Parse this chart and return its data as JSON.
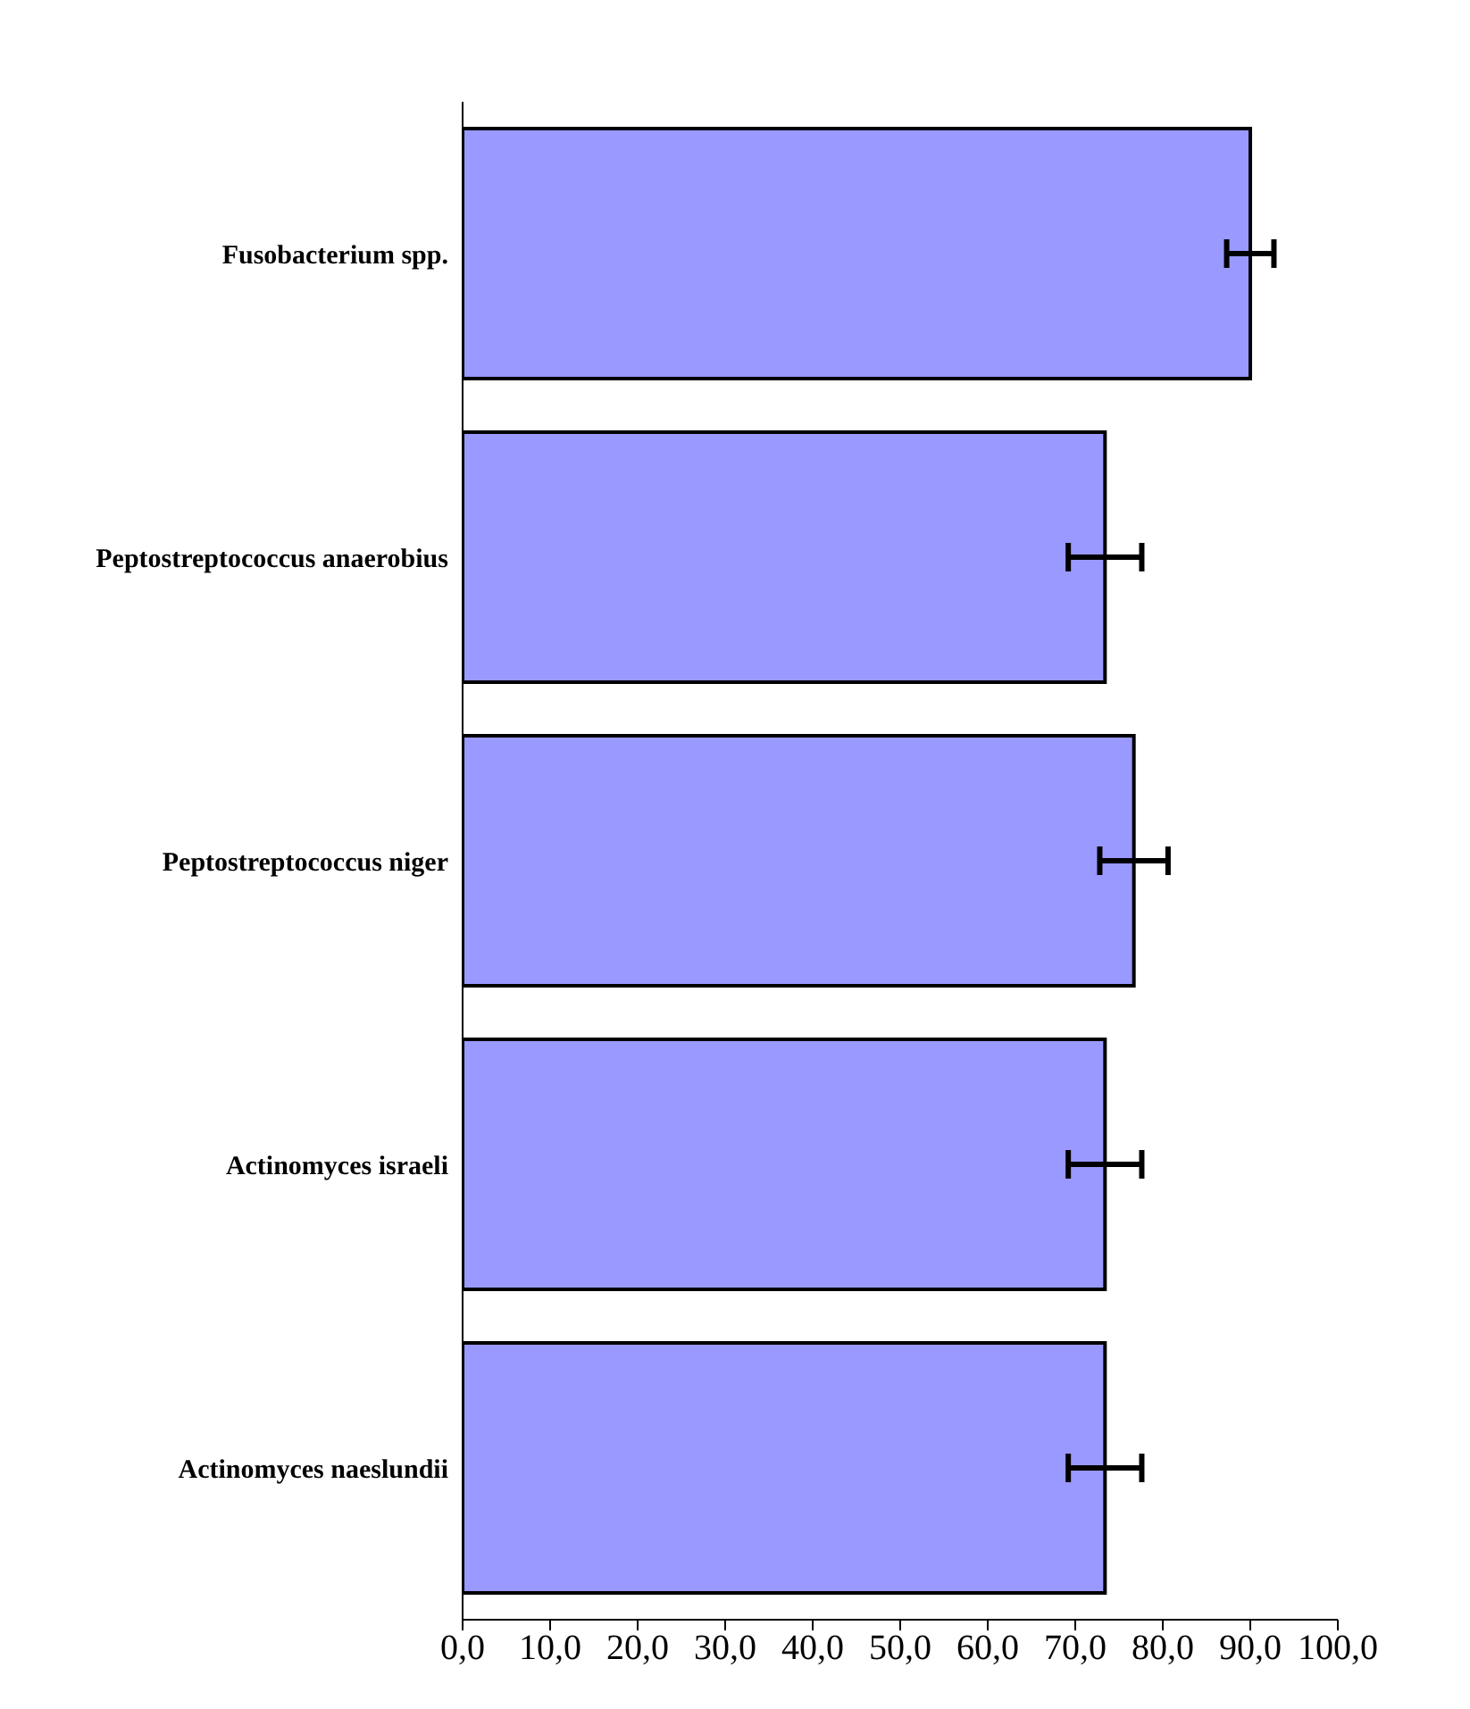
{
  "chart_data": {
    "type": "bar",
    "orientation": "horizontal",
    "categories": [
      "Fusobacterium spp.",
      "Peptostreptococcus anaerobius",
      "Peptostreptococcus niger",
      "Actinomyces israeli",
      "Actinomyces naeslundii"
    ],
    "values": [
      90.0,
      73.4,
      76.7,
      73.4,
      73.4
    ],
    "errors": [
      2.7,
      4.2,
      3.9,
      4.2,
      4.2
    ],
    "color": "#9999ff",
    "xlim": [
      0,
      100
    ],
    "xticks": [
      {
        "value": 0,
        "label": "0,0"
      },
      {
        "value": 10,
        "label": "10,0"
      },
      {
        "value": 20,
        "label": "20,0"
      },
      {
        "value": 30,
        "label": "30,0"
      },
      {
        "value": 40,
        "label": "40,0"
      },
      {
        "value": 50,
        "label": "50,0"
      },
      {
        "value": 60,
        "label": "60,0"
      },
      {
        "value": 70,
        "label": "70,0"
      },
      {
        "value": 80,
        "label": "80,0"
      },
      {
        "value": 90,
        "label": "90,0"
      },
      {
        "value": 100,
        "label": "100,0"
      }
    ],
    "grid": false,
    "legend": false
  }
}
